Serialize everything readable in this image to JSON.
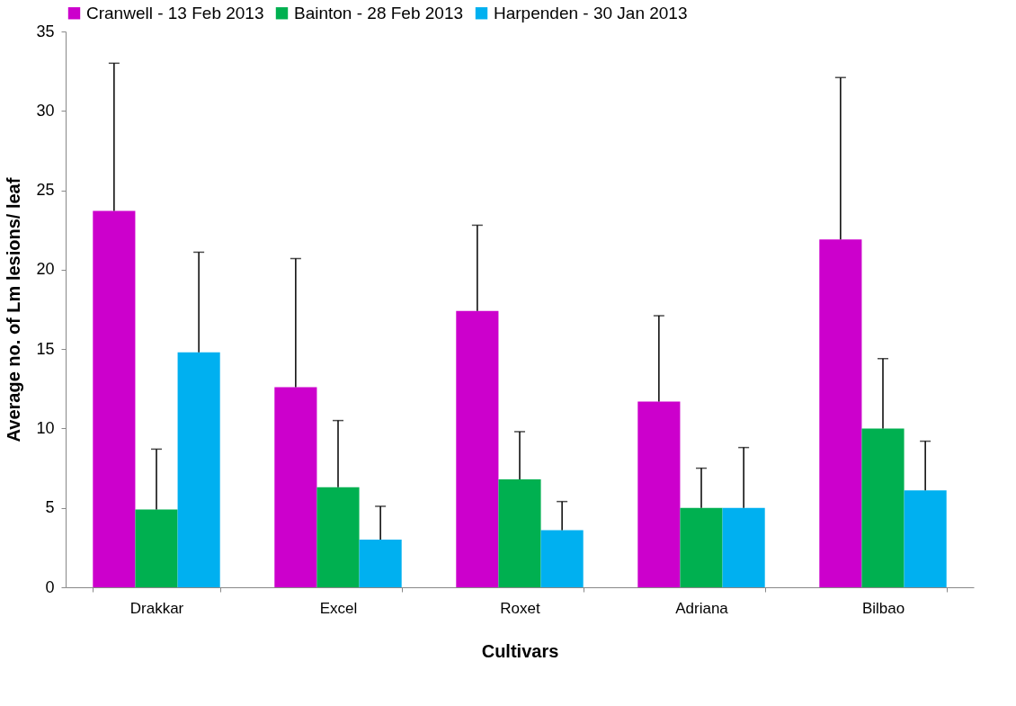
{
  "chart_data": {
    "type": "bar",
    "xlabel": "Cultivars",
    "ylabel": "Average no. of Lm lesions/ leaf",
    "categories": [
      "Drakkar",
      "Excel",
      "Roxet",
      "Adriana",
      "Bilbao"
    ],
    "series": [
      {
        "name": "Cranwell - 13 Feb 2013",
        "color": "#cc00cc",
        "values": [
          23.7,
          12.6,
          17.4,
          11.7,
          21.9
        ],
        "errors": [
          [
            23.7,
            33.0
          ],
          [
            12.6,
            20.7
          ],
          [
            17.4,
            22.8
          ],
          [
            11.7,
            17.1
          ],
          [
            21.9,
            32.1
          ]
        ]
      },
      {
        "name": "Bainton - 28 Feb 2013",
        "color": "#00b050",
        "values": [
          4.9,
          6.3,
          6.8,
          5.0,
          10.0
        ],
        "errors": [
          [
            4.9,
            8.7
          ],
          [
            6.3,
            10.5
          ],
          [
            6.8,
            9.8
          ],
          [
            5.0,
            7.5
          ],
          [
            10.0,
            14.4
          ]
        ]
      },
      {
        "name": "Harpenden - 30 Jan 2013",
        "color": "#00b0f0",
        "values": [
          14.8,
          3.0,
          3.6,
          5.0,
          6.1
        ],
        "errors": [
          [
            14.8,
            21.1
          ],
          [
            3.0,
            5.1
          ],
          [
            3.6,
            5.4
          ],
          [
            5.0,
            8.8
          ],
          [
            6.1,
            9.2
          ]
        ]
      }
    ],
    "ylim": [
      0,
      35
    ],
    "yticks": [
      0,
      5,
      10,
      15,
      20,
      25,
      30,
      35
    ],
    "grid": false,
    "legend": "top"
  }
}
